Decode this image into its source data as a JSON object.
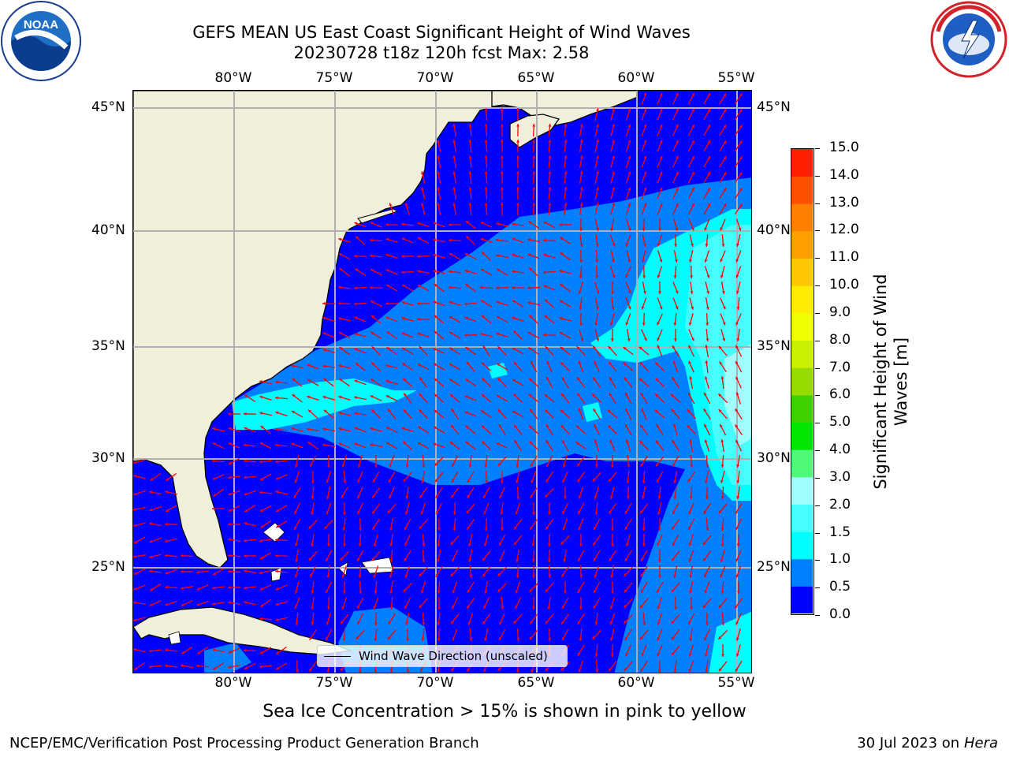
{
  "title": {
    "line1": "GEFS MEAN US East Coast Significant Height of Wind Waves",
    "line2": "20230728 t18z 120h fcst   Max: 2.58"
  },
  "logos": {
    "left": {
      "icon": "noaa-logo-icon",
      "text_main": "NOAA",
      "text_ring": "NATIONAL OCEANIC AND ATMOSPHERIC ADMINISTRATION · U.S. DEPARTMENT OF COMMERCE"
    },
    "right": {
      "icon": "national-weather-service-logo-icon",
      "text_ring": "NATIONAL WEATHER SERVICE"
    }
  },
  "map": {
    "longitude_labels": [
      "80°W",
      "75°W",
      "70°W",
      "65°W",
      "60°W",
      "55°W"
    ],
    "latitude_labels": [
      "45°N",
      "40°N",
      "35°N",
      "30°N",
      "25°N"
    ],
    "legend_label": "Wind Wave Direction (unscaled)",
    "colors": {
      "land": "#efefdb",
      "ocean_low": "#0000fe",
      "ocean_mid": "#0080ff",
      "ocean_high": "#00fefe",
      "arrow": "#ff0000",
      "grid": "#b0b0b0"
    }
  },
  "colorbar": {
    "label_line1": "Significant Height of Wind",
    "label_line2": "Waves [m]",
    "ticks": [
      "0.0",
      "0.5",
      "1.0",
      "1.5",
      "2.0",
      "3.0",
      "4.0",
      "5.0",
      "6.0",
      "7.0",
      "8.0",
      "9.0",
      "10.0",
      "11.0",
      "12.0",
      "13.0",
      "14.0",
      "15.0"
    ],
    "colors": [
      "#0000fe",
      "#0080ff",
      "#00fefe",
      "#46fefe",
      "#a0fefe",
      "#50fa78",
      "#00e600",
      "#3cd200",
      "#96dc00",
      "#c8f000",
      "#f0ff00",
      "#ffec00",
      "#ffc800",
      "#ffa000",
      "#ff8000",
      "#ff5000",
      "#ff1e00"
    ]
  },
  "subtitle": "Sea Ice Concentration > 15% is shown in pink to yellow",
  "footer": {
    "left": "NCEP/EMC/Verification Post Processing Product Generation Branch",
    "right_date": "30 Jul 2023 on ",
    "right_host": "Hera"
  }
}
